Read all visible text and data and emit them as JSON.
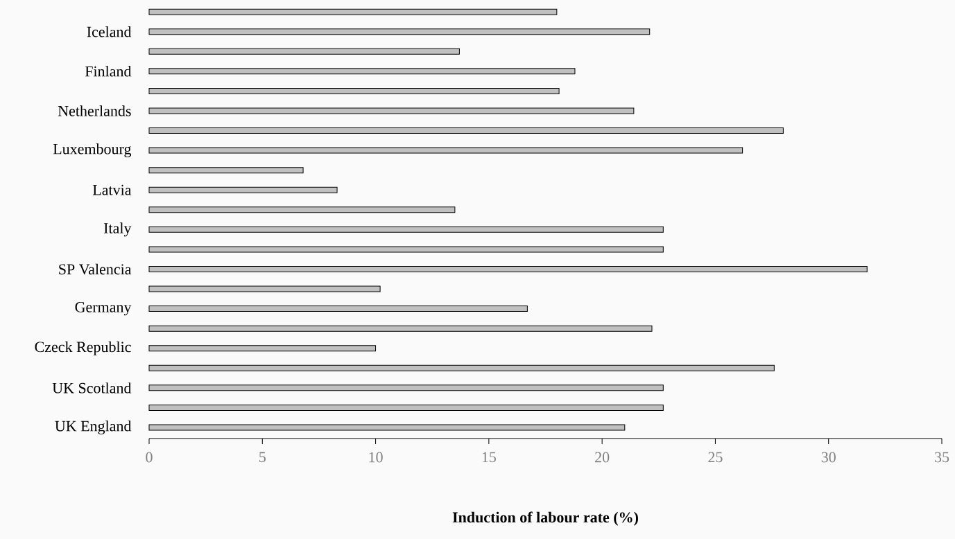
{
  "chart_data": {
    "type": "bar",
    "orientation": "horizontal",
    "xlabel": "**Induction of labour rate (%)**",
    "categories": [
      null,
      "Iceland",
      null,
      "Finland",
      null,
      "Netherlands",
      null,
      "Luxembourg",
      null,
      "Latvia",
      null,
      "Italy",
      null,
      "SP Valencia",
      null,
      "Germany",
      null,
      "Czeck Republic",
      null,
      "UK Scotland",
      null,
      "UK England"
    ],
    "values": [
      18.0,
      22.1,
      13.7,
      18.8,
      18.1,
      21.4,
      28.0,
      26.2,
      6.8,
      8.3,
      13.5,
      22.7,
      22.7,
      31.7,
      10.2,
      16.7,
      22.2,
      10.0,
      27.6,
      22.7,
      22.7,
      21.0
    ],
    "color": "#c0c0c0",
    "xlim": [
      0,
      35
    ],
    "xticks": [
      0,
      5,
      10,
      15,
      20,
      25,
      30,
      35
    ]
  }
}
